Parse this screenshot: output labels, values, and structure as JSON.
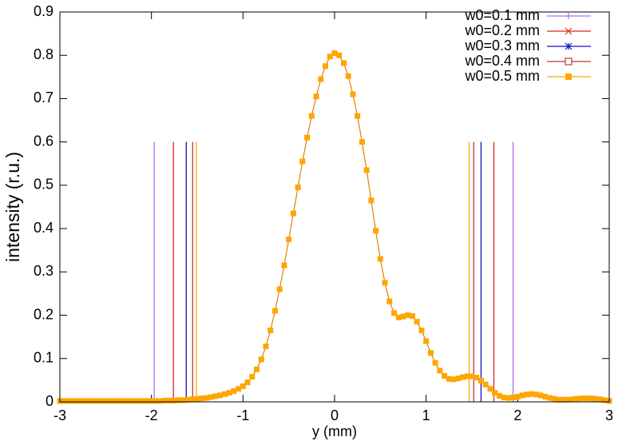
{
  "chart_data": {
    "type": "line",
    "xlabel": "y (mm)",
    "ylabel": "intensity (r.u.)",
    "xlim": [
      -3,
      3
    ],
    "ylim": [
      0,
      0.9
    ],
    "xticks": [
      -3,
      -2,
      -1,
      0,
      1,
      2,
      3
    ],
    "yticks": [
      0,
      0.1,
      0.2,
      0.3,
      0.4,
      0.5,
      0.6,
      0.7,
      0.8,
      0.9
    ],
    "legend": "top-right",
    "curve_color": "#e08000",
    "point_color": "#ffa500",
    "bound_height": 0.6,
    "x": [
      -3,
      -2.95,
      -2.9,
      -2.85,
      -2.8,
      -2.75,
      -2.7,
      -2.65,
      -2.6,
      -2.55,
      -2.5,
      -2.45,
      -2.4,
      -2.35,
      -2.3,
      -2.25,
      -2.2,
      -2.15,
      -2.1,
      -2.05,
      -2,
      -1.95,
      -1.9,
      -1.85,
      -1.8,
      -1.75,
      -1.7,
      -1.65,
      -1.6,
      -1.55,
      -1.5,
      -1.45,
      -1.4,
      -1.35,
      -1.3,
      -1.25,
      -1.2,
      -1.15,
      -1.1,
      -1.05,
      -1,
      -0.95,
      -0.9,
      -0.85,
      -0.8,
      -0.75,
      -0.7,
      -0.65,
      -0.6,
      -0.55,
      -0.5,
      -0.45,
      -0.4,
      -0.35,
      -0.3,
      -0.25,
      -0.2,
      -0.15,
      -0.1,
      -0.05,
      0,
      0.05,
      0.1,
      0.15,
      0.2,
      0.25,
      0.3,
      0.35,
      0.4,
      0.45,
      0.5,
      0.55,
      0.6,
      0.65,
      0.7,
      0.75,
      0.8,
      0.85,
      0.9,
      0.95,
      1,
      1.05,
      1.1,
      1.15,
      1.2,
      1.25,
      1.3,
      1.35,
      1.4,
      1.45,
      1.5,
      1.55,
      1.6,
      1.65,
      1.7,
      1.75,
      1.8,
      1.85,
      1.9,
      1.95,
      2,
      2.05,
      2.1,
      2.15,
      2.2,
      2.25,
      2.3,
      2.35,
      2.4,
      2.45,
      2.5,
      2.55,
      2.6,
      2.65,
      2.7,
      2.75,
      2.8,
      2.85,
      2.9,
      2.95,
      3
    ],
    "values": [
      0.002,
      0.002,
      0.002,
      0.002,
      0.002,
      0.002,
      0.002,
      0.002,
      0.002,
      0.002,
      0.002,
      0.002,
      0.002,
      0.002,
      0.002,
      0.002,
      0.002,
      0.002,
      0.002,
      0.002,
      0.002,
      0.002,
      0.002,
      0.003,
      0.003,
      0.003,
      0.004,
      0.004,
      0.005,
      0.006,
      0.007,
      0.008,
      0.009,
      0.011,
      0.013,
      0.015,
      0.018,
      0.021,
      0.025,
      0.03,
      0.036,
      0.045,
      0.058,
      0.075,
      0.098,
      0.128,
      0.165,
      0.21,
      0.26,
      0.315,
      0.375,
      0.435,
      0.495,
      0.555,
      0.61,
      0.66,
      0.705,
      0.745,
      0.775,
      0.797,
      0.805,
      0.8,
      0.782,
      0.752,
      0.71,
      0.66,
      0.6,
      0.535,
      0.465,
      0.395,
      0.33,
      0.275,
      0.232,
      0.205,
      0.195,
      0.197,
      0.2,
      0.198,
      0.185,
      0.165,
      0.14,
      0.113,
      0.09,
      0.072,
      0.06,
      0.053,
      0.052,
      0.054,
      0.057,
      0.059,
      0.059,
      0.056,
      0.049,
      0.04,
      0.03,
      0.021,
      0.014,
      0.01,
      0.009,
      0.01,
      0.012,
      0.015,
      0.017,
      0.018,
      0.017,
      0.015,
      0.012,
      0.009,
      0.007,
      0.005,
      0.005,
      0.005,
      0.006,
      0.007,
      0.008,
      0.008,
      0.008,
      0.007,
      0.006,
      0.004,
      0.002
    ],
    "series": [
      {
        "name": "w0=0.1 mm",
        "color": "#b070e8",
        "marker": "plus",
        "edges": [
          -1.97,
          1.95
        ]
      },
      {
        "name": "w0=0.2 mm",
        "color": "#e02818",
        "marker": "cross",
        "edges": [
          -1.76,
          1.74
        ]
      },
      {
        "name": "w0=0.3 mm",
        "color": "#1010c0",
        "marker": "star",
        "edges": [
          -1.62,
          1.6
        ]
      },
      {
        "name": "w0=0.4 mm",
        "color": "#b83838",
        "marker": "open-square",
        "edges": [
          -1.55,
          1.52
        ]
      },
      {
        "name": "w0=0.5 mm",
        "color": "#ffa500",
        "marker": "filled-square",
        "edges": [
          -1.51,
          1.47
        ]
      }
    ]
  }
}
